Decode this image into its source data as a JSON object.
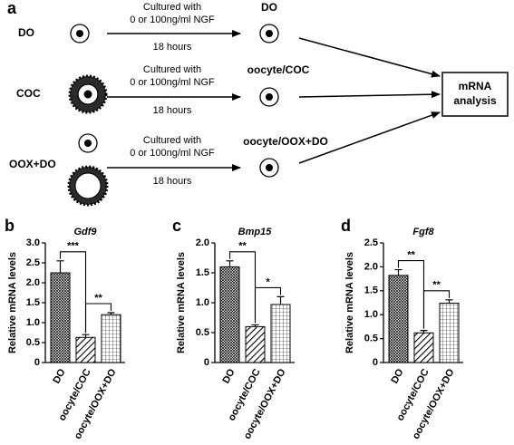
{
  "diagram": {
    "label": "a",
    "rows": [
      {
        "name": "DO",
        "culture": [
          "Cultured with",
          "0 or 100ng/ml NGF"
        ],
        "time": "18 hours",
        "result": "DO"
      },
      {
        "name": "COC",
        "culture": [
          "Cultured with",
          "0 or 100ng/ml NGF"
        ],
        "time": "18 hours",
        "result": "oocyte/COC"
      },
      {
        "name": "OOX+DO",
        "culture": [
          "Cultured with",
          "0 or 100ng/ml NGF"
        ],
        "time": "18 hours",
        "result": "oocyte/OOX+DO"
      }
    ],
    "analysis": [
      "mRNA",
      "analysis"
    ]
  },
  "chart_data": [
    {
      "type": "bar",
      "panel": "b",
      "title": "Gdf9",
      "y_label": "Relative mRNA levels",
      "categories": [
        "DO",
        "oocyte/COC",
        "oocyte/OOX+DO"
      ],
      "values": [
        2.25,
        0.63,
        1.2
      ],
      "errors": [
        0.3,
        0.07,
        0.05
      ],
      "annotations": [
        "***",
        "**"
      ],
      "ylim": [
        0,
        3
      ],
      "yticks": [
        0,
        0.5,
        {
          "value": 1,
          "label": "1.0"
        },
        1.5,
        {
          "value": 2,
          "label": "2.0"
        },
        2.5,
        {
          "value": 3,
          "label": "3.0"
        }
      ]
    },
    {
      "type": "bar",
      "panel": "c",
      "title": "Bmp15",
      "y_label": "Relative mRNA levels",
      "categories": [
        "DO",
        "oocyte/COC",
        "oocyte/OOX+DO"
      ],
      "values": [
        1.6,
        0.6,
        0.97
      ],
      "errors": [
        0.1,
        0.03,
        0.13
      ],
      "annotations": [
        "**",
        "*"
      ],
      "ylim": [
        0,
        2
      ],
      "yticks": [
        0,
        0.5,
        {
          "value": 1,
          "label": "1.0"
        },
        1.5,
        {
          "value": 2,
          "label": "2.0"
        }
      ]
    },
    {
      "type": "bar",
      "panel": "d",
      "title": "Fgf8",
      "y_label": "Relative mRNA levels",
      "categories": [
        "DO",
        "oocyte/COC",
        "oocyte/OOX+DO"
      ],
      "values": [
        1.82,
        0.62,
        1.24
      ],
      "errors": [
        0.12,
        0.05,
        0.07
      ],
      "annotations": [
        "**",
        "**"
      ],
      "ylim": [
        0,
        2.5
      ],
      "yticks": [
        0,
        0.5,
        {
          "value": 1,
          "label": "1.0"
        },
        1.5,
        {
          "value": 2,
          "label": "2.0"
        },
        2.5
      ]
    }
  ]
}
